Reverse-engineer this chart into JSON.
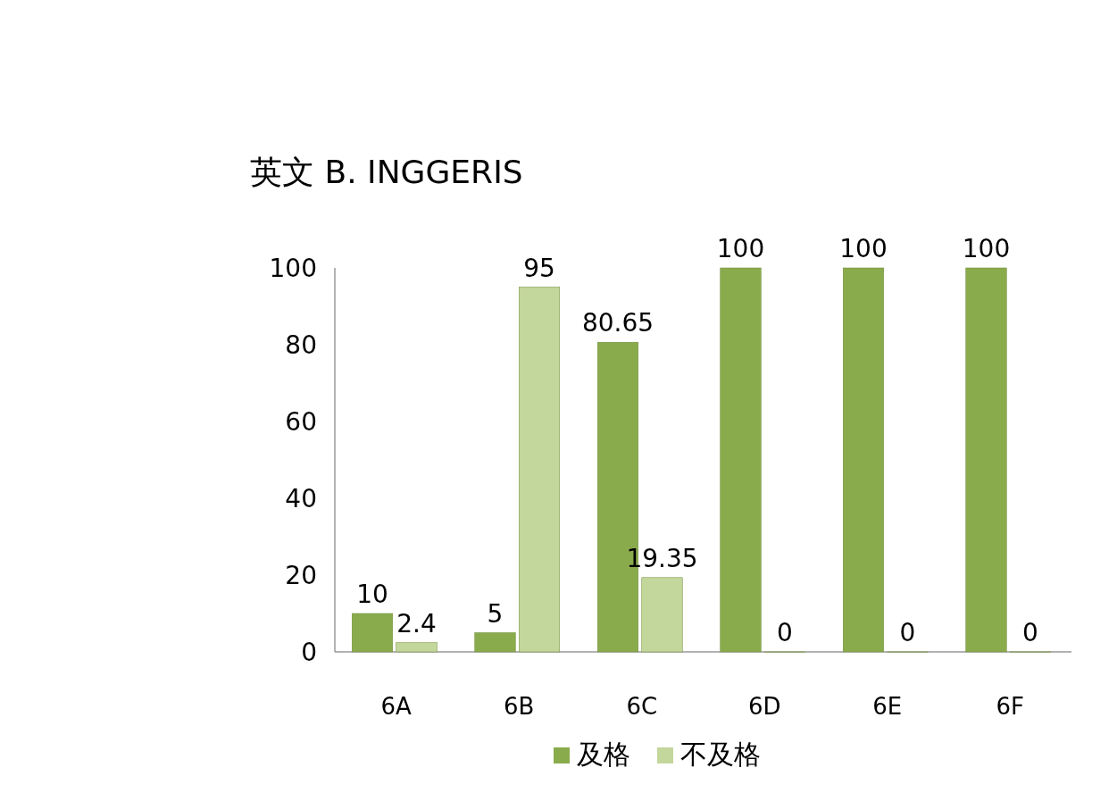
{
  "chart_data": {
    "type": "bar",
    "title": "英文 B. INGGERIS",
    "categories": [
      "6A",
      "6B",
      "6C",
      "6D",
      "6E",
      "6F"
    ],
    "series": [
      {
        "name": "及格",
        "color": "#8aab4c",
        "values": [
          10,
          5,
          80.65,
          100,
          100,
          100
        ]
      },
      {
        "name": "不及格",
        "color": "#c3d69b",
        "values": [
          2.4,
          95,
          19.35,
          0,
          0,
          0
        ]
      }
    ],
    "ylim": [
      0,
      100
    ],
    "yticks": [
      0,
      20,
      40,
      60,
      80,
      100
    ],
    "grid": false,
    "legend": "bottom",
    "data_labels": true
  }
}
